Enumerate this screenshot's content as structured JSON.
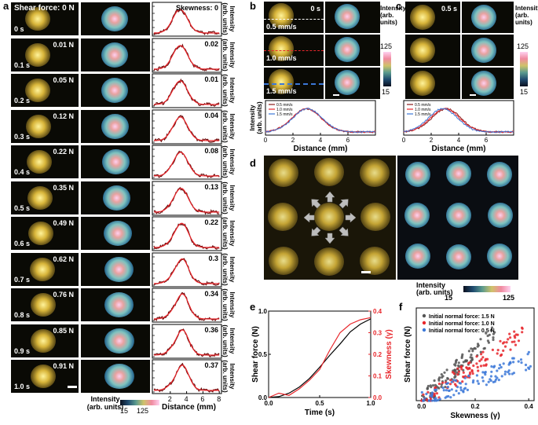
{
  "panels": {
    "a": "a",
    "b": "b",
    "c": "c",
    "d": "d",
    "e": "e",
    "f": "f"
  },
  "panel_a": {
    "shear_header": "Shear force: 0 N",
    "skew_header": "Skewness: 0",
    "rows": [
      {
        "time": "0 s",
        "force": "",
        "skew": ""
      },
      {
        "time": "0.1 s",
        "force": "0.01 N",
        "skew": "0.02"
      },
      {
        "time": "0.2 s",
        "force": "0.05 N",
        "skew": "0.01"
      },
      {
        "time": "0.3 s",
        "force": "0.12 N",
        "skew": "0.04"
      },
      {
        "time": "0.4 s",
        "force": "0.22 N",
        "skew": "0.08"
      },
      {
        "time": "0.5 s",
        "force": "0.35 N",
        "skew": "0.13"
      },
      {
        "time": "0.6 s",
        "force": "0.49 N",
        "skew": "0.22"
      },
      {
        "time": "0.7 s",
        "force": "0.62 N",
        "skew": "0.3"
      },
      {
        "time": "0.8 s",
        "force": "0.76 N",
        "skew": "0.34"
      },
      {
        "time": "0.9 s",
        "force": "0.85 N",
        "skew": "0.36"
      },
      {
        "time": "1.0 s",
        "force": "0.91 N",
        "skew": "0.37"
      }
    ],
    "ylabel_line1": "Intensity",
    "ylabel_line2": "(arb. units)",
    "xlabel": "Distance (mm)",
    "xticks": [
      "2",
      "4",
      "6",
      "8"
    ],
    "colorbar_label1": "Intensity",
    "colorbar_label2": "(arb. units)",
    "colorbar_min": "15",
    "colorbar_max": "125"
  },
  "panel_b": {
    "time": "0 s",
    "speeds": [
      "0.5 mm/s",
      "1.0 mm/s",
      "1.5 mm/s"
    ],
    "colorbar_max": "125",
    "colorbar_min": "15",
    "colorbar_label1": "Intensity",
    "colorbar_label2": "(arb. units)",
    "ylabel1": "Intensity",
    "ylabel2": "(arb. units)",
    "xlabel": "Distance (mm)",
    "xticks": [
      "0",
      "2",
      "4",
      "6"
    ],
    "legend": [
      "0.5 mm/s",
      "1.0 mm/s",
      "1.5 mm/s"
    ]
  },
  "panel_c": {
    "time": "0.5 s",
    "colorbar_max": "125",
    "colorbar_min": "15",
    "colorbar_label1": "Intensity",
    "colorbar_label2": "(arb. units)",
    "xlabel": "Distance (mm)",
    "xticks": [
      "0",
      "2",
      "4",
      "6"
    ],
    "legend": [
      "0.5 mm/s",
      "1.0 mm/s",
      "1.5 mm/s"
    ]
  },
  "panel_d": {
    "colorbar_label1": "Intensity",
    "colorbar_label2": "(arb. units)",
    "colorbar_min": "15",
    "colorbar_max": "125"
  },
  "colors": {
    "black": "#000000",
    "red": "#e8262b",
    "blue": "#3c78d8",
    "gray": "#555555",
    "dark_red": "#8b1a1a"
  },
  "chart_data": [
    {
      "type": "line",
      "title": "e",
      "xlabel": "Time (s)",
      "ylabel": "Shear force (N)",
      "y2label": "Skewness (γ)",
      "xlim": [
        0,
        1.0
      ],
      "ylim": [
        0,
        1.0
      ],
      "y2lim": [
        0,
        0.4
      ],
      "xticks": [
        "0.0",
        "0.5",
        "1.0"
      ],
      "yticks": [
        "0.0",
        "0.5",
        "1.0"
      ],
      "y2ticks": [
        "0.0",
        "0.1",
        "0.2",
        "0.3",
        "0.4"
      ],
      "series": [
        {
          "name": "Shear force",
          "axis": "left",
          "color": "#000000",
          "x": [
            0,
            0.1,
            0.2,
            0.3,
            0.4,
            0.5,
            0.6,
            0.7,
            0.8,
            0.9,
            1.0
          ],
          "values": [
            0,
            0.01,
            0.05,
            0.12,
            0.22,
            0.35,
            0.49,
            0.62,
            0.76,
            0.85,
            0.91
          ]
        },
        {
          "name": "Skewness",
          "axis": "right",
          "color": "#e8262b",
          "x": [
            0,
            0.1,
            0.2,
            0.3,
            0.4,
            0.5,
            0.6,
            0.7,
            0.8,
            0.9,
            1.0
          ],
          "values": [
            0,
            0.02,
            0.01,
            0.04,
            0.08,
            0.13,
            0.22,
            0.3,
            0.34,
            0.36,
            0.37
          ]
        }
      ]
    },
    {
      "type": "scatter",
      "title": "f",
      "xlabel": "Skewness (γ)",
      "ylabel": "Shear force (N)",
      "xlim": [
        -0.02,
        0.42
      ],
      "ylim": [
        0,
        1.2
      ],
      "xticks": [
        "0.0",
        "0.2",
        "0.4"
      ],
      "series": [
        {
          "name": "Initial normal force: 1.5 N",
          "color": "#555555",
          "slope": 3.2,
          "xmax": 0.28
        },
        {
          "name": "Initial normal force: 1.0 N",
          "color": "#e8262b",
          "slope": 2.3,
          "xmax": 0.39
        },
        {
          "name": "Initial normal force: 0.5 N",
          "color": "#3c78d8",
          "slope": 1.3,
          "xmax": 0.41
        }
      ]
    }
  ]
}
